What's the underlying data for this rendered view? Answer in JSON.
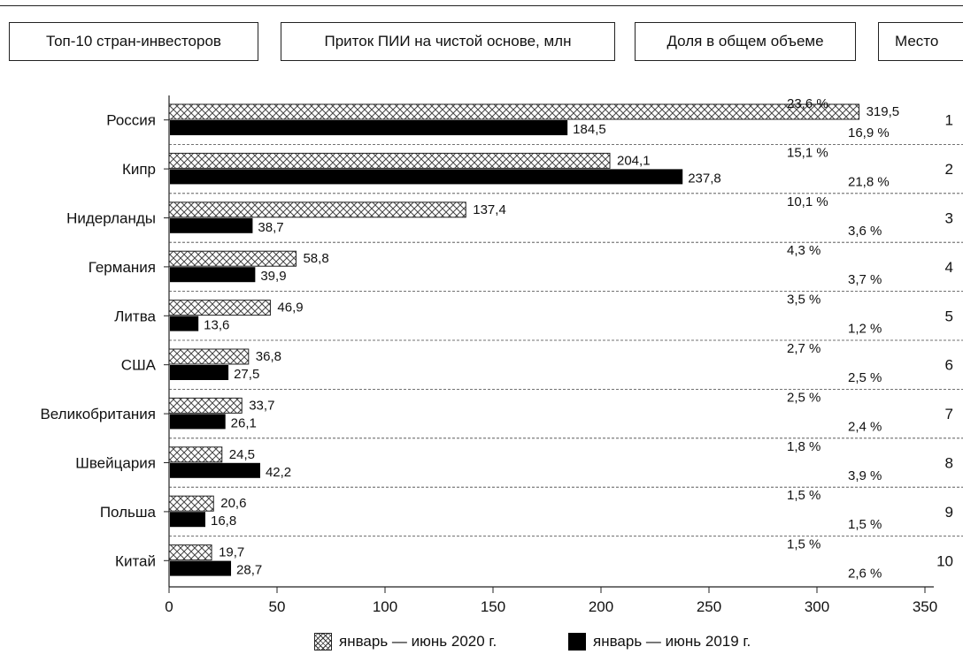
{
  "header": {
    "col1": "Топ-10 стран-инвесторов",
    "col2": "Приток ПИИ на чистой основе, млн",
    "col3": "Доля в общем объеме",
    "col4": "Место"
  },
  "legend": {
    "series_2020": "январь — июнь 2020 г.",
    "series_2019": "январь — июнь 2019 г."
  },
  "chart_data": {
    "type": "bar",
    "orientation": "horizontal",
    "categories": [
      "Россия",
      "Кипр",
      "Нидерланды",
      "Германия",
      "Литва",
      "США",
      "Великобритания",
      "Швейцария",
      "Польша",
      "Китай"
    ],
    "series": [
      {
        "name": "январь — июнь 2020 г.",
        "pattern": "crosshatch",
        "values": [
          319.5,
          204.1,
          137.4,
          58.8,
          46.9,
          36.8,
          33.7,
          24.5,
          20.6,
          19.7
        ],
        "labels": [
          "319,5",
          "204,1",
          "137,4",
          "58,8",
          "46,9",
          "36,8",
          "33,7",
          "24,5",
          "20,6",
          "19,7"
        ],
        "share_labels": [
          "23,6 %",
          "15,1 %",
          "10,1 %",
          "4,3 %",
          "3,5 %",
          "2,7 %",
          "2,5 %",
          "1,8 %",
          "1,5 %",
          "1,5 %"
        ]
      },
      {
        "name": "январь — июнь 2019 г.",
        "color": "#000000",
        "values": [
          184.5,
          237.8,
          38.7,
          39.9,
          13.6,
          27.5,
          26.1,
          42.2,
          16.8,
          28.7
        ],
        "labels": [
          "184,5",
          "237,8",
          "38,7",
          "39,9",
          "13,6",
          "27,5",
          "26,1",
          "42,2",
          "16,8",
          "28,7"
        ],
        "share_labels": [
          "16,9 %",
          "21,8 %",
          "3,6 %",
          "3,7 %",
          "1,2 %",
          "2,5 %",
          "2,4 %",
          "3,9 %",
          "1,5 %",
          "2,6 %"
        ]
      }
    ],
    "ranks": [
      "1",
      "2",
      "3",
      "4",
      "5",
      "6",
      "7",
      "8",
      "9",
      "10"
    ],
    "xlim": [
      0,
      350
    ],
    "xticks": [
      "0",
      "50",
      "100",
      "150",
      "200",
      "250",
      "300",
      "350"
    ],
    "grid": "horizontal dashed separators between rows",
    "legend_position": "bottom-center"
  }
}
